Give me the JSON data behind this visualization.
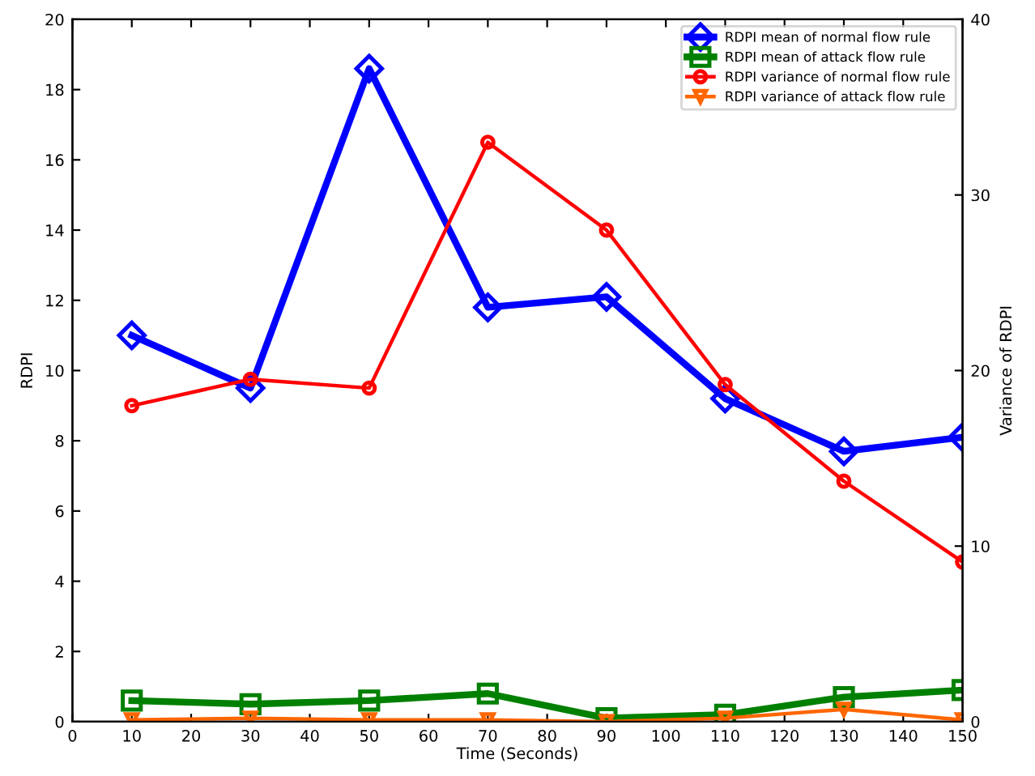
{
  "chart_data": {
    "type": "line",
    "xlabel": "Time (Seconds)",
    "ylabel": "RDPI",
    "y2label": "Variance of RDPI",
    "xlim": [
      0,
      150
    ],
    "xticks": [
      0,
      10,
      20,
      30,
      40,
      50,
      60,
      70,
      80,
      90,
      100,
      110,
      120,
      130,
      140,
      150
    ],
    "ylim": [
      0,
      20
    ],
    "yticks": [
      0,
      2,
      4,
      6,
      8,
      10,
      12,
      14,
      16,
      18,
      20
    ],
    "y2lim": [
      0,
      40
    ],
    "y2ticks": [
      0,
      10,
      20,
      30,
      40
    ],
    "x": [
      10,
      30,
      50,
      70,
      90,
      110,
      130,
      150
    ],
    "legend": "top right",
    "grid": false,
    "line_style": "solid",
    "series": [
      {
        "name": "RDPI mean of normal flow rule",
        "color": "#0000ff",
        "marker": "diamond",
        "values": [
          11.0,
          9.5,
          18.6,
          11.8,
          12.1,
          9.2,
          7.7,
          8.1
        ]
      },
      {
        "name": "RDPI mean of attack flow rule",
        "color": "#008000",
        "marker": "square",
        "values": [
          0.6,
          0.5,
          0.6,
          0.8,
          0.1,
          0.2,
          0.7,
          0.9
        ]
      },
      {
        "name": "RDPI variance of normal flow rule",
        "color": "#ff0000",
        "marker": "circle",
        "axis": "y2",
        "values": [
          18,
          19.5,
          19,
          33,
          28,
          19.2,
          13.7,
          9.1
        ]
      },
      {
        "name": "RDPI variance of attack flow rule",
        "color": "#ff6600",
        "marker": "triangle",
        "axis": "y2",
        "values": [
          0.1,
          0.2,
          0.1,
          0.1,
          0,
          0.2,
          0.7,
          0.1
        ]
      }
    ]
  }
}
